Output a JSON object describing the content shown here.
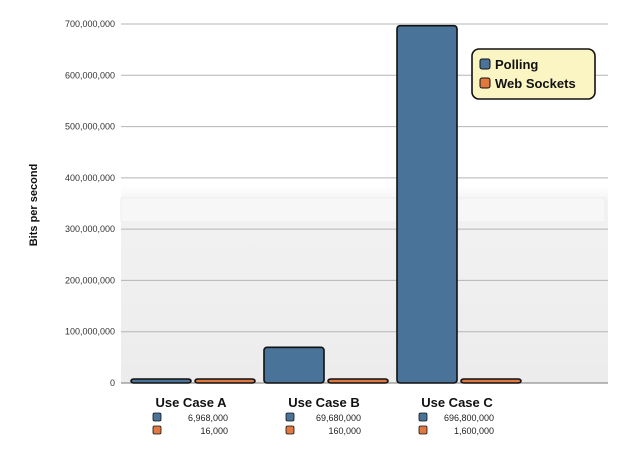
{
  "chart_data": {
    "type": "bar",
    "title": "",
    "xlabel": "",
    "ylabel": "Bits per second",
    "ylim": [
      0,
      700000000
    ],
    "yticks": [
      0,
      100000000,
      200000000,
      300000000,
      400000000,
      500000000,
      600000000,
      700000000
    ],
    "ytick_labels": [
      "0",
      "100,000,000",
      "200,000,000",
      "300,000,000",
      "400,000,000",
      "500,000,000",
      "600,000,000",
      "700,000,000"
    ],
    "categories": [
      "Use Case A",
      "Use Case B",
      "Use Case C"
    ],
    "series": [
      {
        "name": "Polling",
        "color": "#4a7399",
        "values": [
          6968000,
          69680000,
          696800000
        ],
        "value_labels": [
          "6,968,000",
          "69,680,000",
          "696,800,000"
        ]
      },
      {
        "name": "Web Sockets",
        "color": "#e07840",
        "values": [
          16000,
          160000,
          1600000
        ],
        "value_labels": [
          "16,000",
          "160,000",
          "1,600,000"
        ]
      }
    ],
    "grid": true,
    "legend_position": "top-right",
    "legend_background": "#fbf5c4"
  }
}
